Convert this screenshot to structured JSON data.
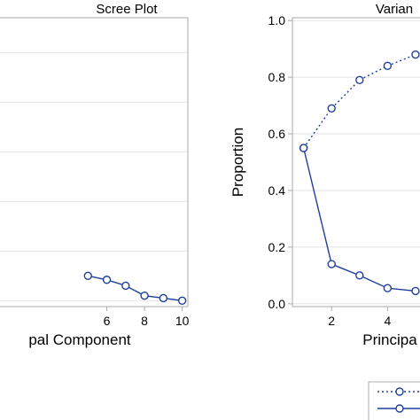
{
  "colors": {
    "series": "#1f3f9a",
    "grid": "#e3e3e3",
    "frame": "#a9a9a9",
    "text": "#000000"
  },
  "chart_data": [
    {
      "type": "line",
      "title": "Scree Plot",
      "xlabel": "pal Component",
      "ylabel": "",
      "xlim": [
        0.05,
        10.3
      ],
      "ylim": [
        -0.12,
        5.7
      ],
      "x_ticks": [
        6,
        8,
        10
      ],
      "x_tick_labels": [
        "6",
        "8",
        "10"
      ],
      "grid": true,
      "series": [
        {
          "x": [
            5,
            6,
            7,
            8,
            9,
            10
          ],
          "y": [
            0.5,
            0.42,
            0.3,
            0.1,
            0.05,
            0.0
          ],
          "line_style": "solid",
          "marker": "circle"
        }
      ]
    },
    {
      "type": "line",
      "title": "Varian",
      "xlabel": "Principa",
      "ylabel": "Proportion",
      "xlim": [
        0.6,
        5.35
      ],
      "ylim": [
        -0.01,
        1.01
      ],
      "x_ticks": [
        2,
        4
      ],
      "x_tick_labels": [
        "2",
        "4"
      ],
      "y_ticks": [
        0.0,
        0.2,
        0.4,
        0.6,
        0.8,
        1.0
      ],
      "y_tick_labels": [
        "0.0",
        "0.2",
        "0.4",
        "0.6",
        "0.8",
        "1.0"
      ],
      "grid": true,
      "legend_placement": "bottom-right",
      "series": [
        {
          "x": [
            1,
            2,
            3,
            4,
            5
          ],
          "y": [
            0.55,
            0.69,
            0.79,
            0.84,
            0.88
          ],
          "line_style": "dotted",
          "marker": "circle"
        },
        {
          "x": [
            1,
            2,
            3,
            4,
            5
          ],
          "y": [
            0.55,
            0.14,
            0.1,
            0.055,
            0.045
          ],
          "line_style": "solid",
          "marker": "circle"
        }
      ]
    }
  ]
}
